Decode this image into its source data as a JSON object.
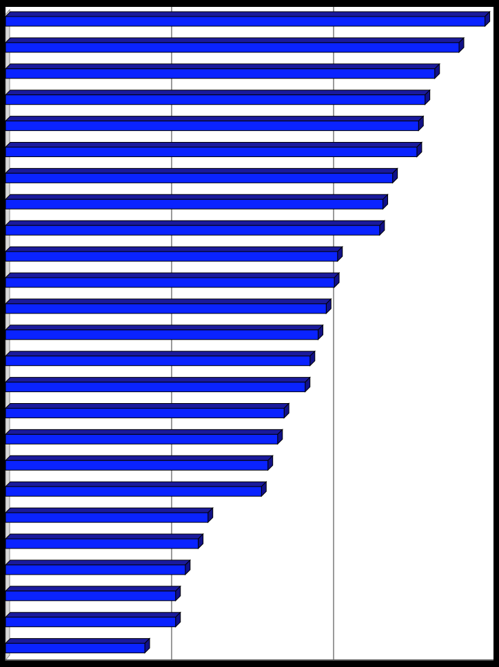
{
  "chart_data": {
    "type": "bar",
    "orientation": "horizontal",
    "style": "3d",
    "title": "",
    "xlabel": "",
    "ylabel": "",
    "xlim": [
      0,
      3
    ],
    "grid": true,
    "legend": "none",
    "categories": [
      "",
      "",
      "",
      "",
      "",
      "",
      "",
      "",
      "",
      "",
      "",
      "",
      "",
      "",
      "",
      "",
      "",
      "",
      "",
      "",
      "",
      "",
      "",
      "",
      ""
    ],
    "values": [
      2.96,
      2.8,
      2.65,
      2.59,
      2.55,
      2.54,
      2.39,
      2.33,
      2.31,
      2.05,
      2.03,
      1.98,
      1.93,
      1.88,
      1.85,
      1.72,
      1.68,
      1.62,
      1.58,
      1.25,
      1.19,
      1.11,
      1.05,
      1.05,
      0.86
    ],
    "colors": {
      "bar_face": "#0a23ff",
      "bar_top": "#1a1a9c",
      "bar_side": "#111188",
      "bar_edge": "#000000",
      "gridline": "#9a9a9a",
      "frame": "#000000",
      "plot_background": "#ffffff"
    }
  }
}
